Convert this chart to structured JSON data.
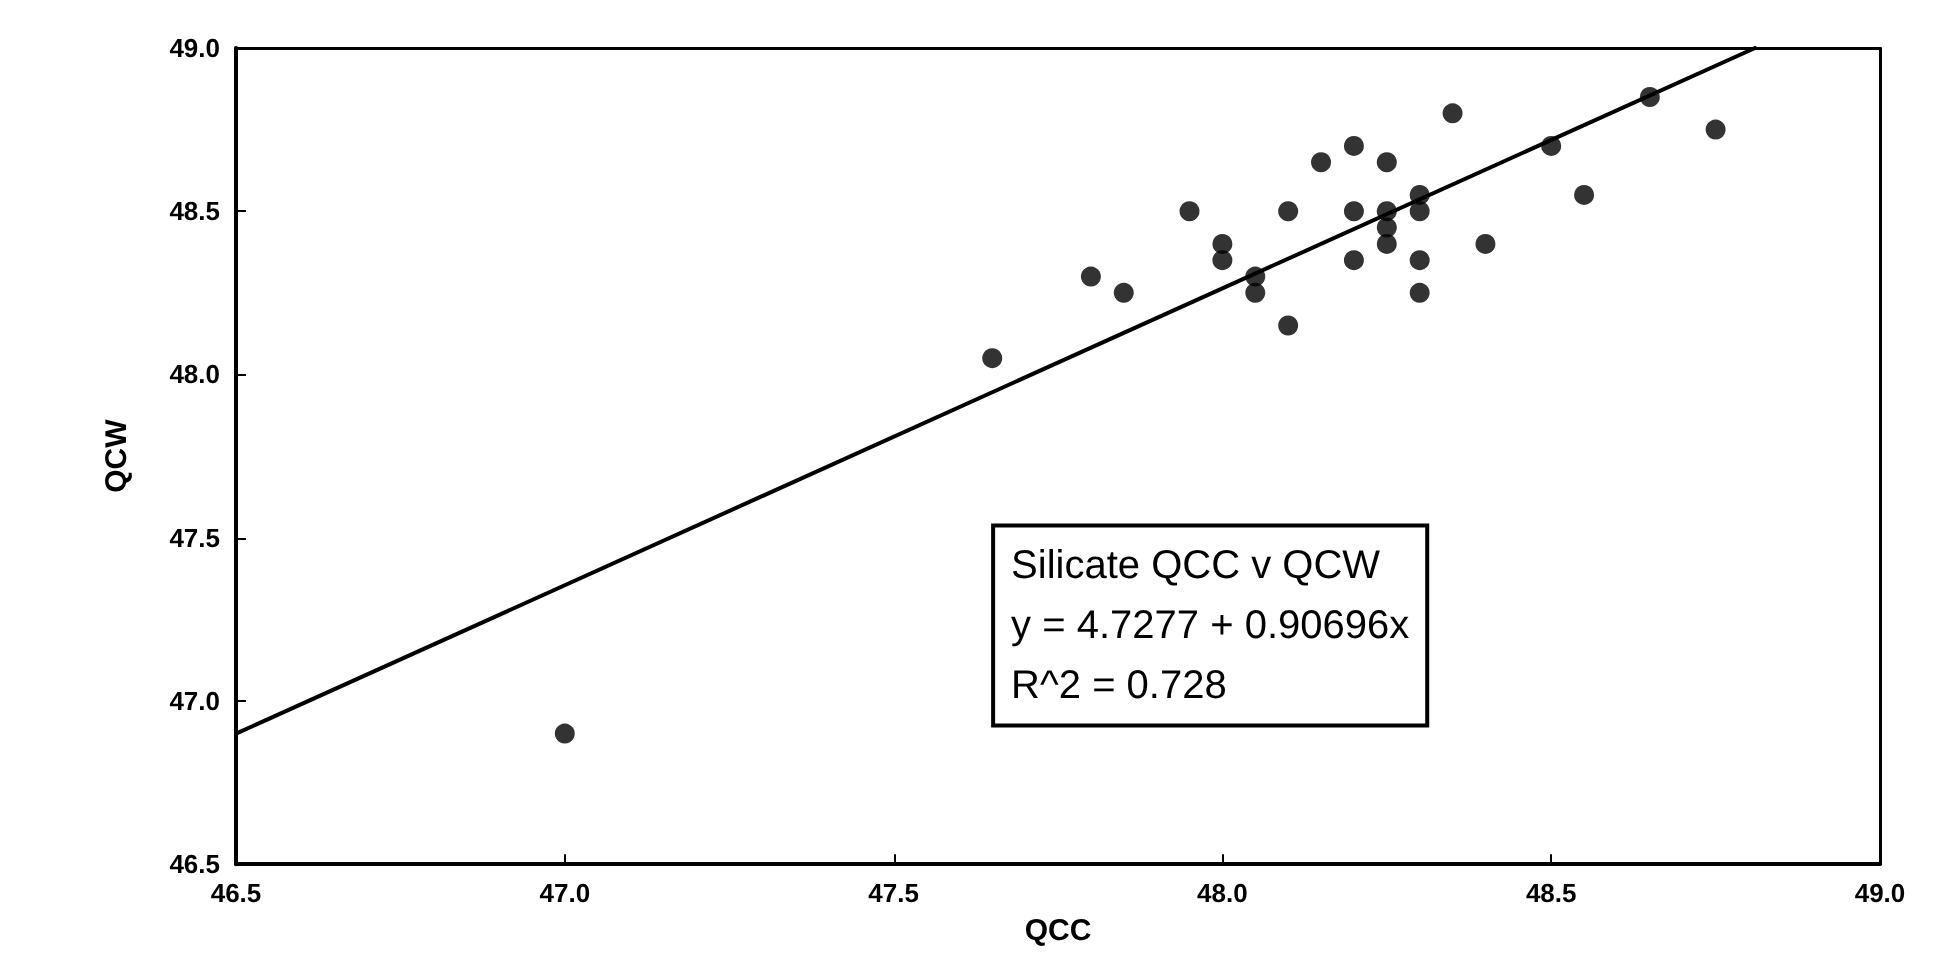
{
  "chart_data": {
    "type": "scatter",
    "xlabel": "QCC",
    "ylabel": "QCW",
    "xlim": [
      46.5,
      49.0
    ],
    "ylim": [
      46.5,
      49.0
    ],
    "xticks": [
      {
        "value": 46.5,
        "label": "46.5"
      },
      {
        "value": 47,
        "label": "47.0"
      },
      {
        "value": 47.5,
        "label": "47.5"
      },
      {
        "value": 48,
        "label": "48.0"
      },
      {
        "value": 48.5,
        "label": "48.5"
      },
      {
        "value": 49,
        "label": "49.0"
      }
    ],
    "yticks": [
      {
        "value": 46.5,
        "label": "46.5"
      },
      {
        "value": 47,
        "label": "47.0"
      },
      {
        "value": 47.5,
        "label": "47.5"
      },
      {
        "value": 48,
        "label": "48.0"
      },
      {
        "value": 48.5,
        "label": "48.5"
      },
      {
        "value": 49,
        "label": "49.0"
      }
    ],
    "grid": false,
    "marker": "circle",
    "annotations": [
      "Silicate QCC v QCW",
      "y = 4.7277 + 0.90696x",
      "R^2 = 0.728"
    ],
    "series": [
      {
        "color": "#000000",
        "x": [
          47.0,
          47.65,
          47.8,
          47.85,
          47.95,
          48.0,
          48.0,
          48.05,
          48.05,
          48.1,
          48.1,
          48.15,
          48.2,
          48.2,
          48.2,
          48.25,
          48.25,
          48.25,
          48.25,
          48.3,
          48.3,
          48.3,
          48.3,
          48.35,
          48.4,
          48.5,
          48.55,
          48.65,
          48.75
        ],
        "values": [
          46.9,
          48.05,
          48.3,
          48.25,
          48.5,
          48.4,
          48.35,
          48.3,
          48.25,
          48.5,
          48.15,
          48.65,
          48.7,
          48.5,
          48.35,
          48.65,
          48.5,
          48.45,
          48.4,
          48.55,
          48.5,
          48.35,
          48.25,
          48.8,
          48.4,
          48.7,
          48.55,
          48.85,
          48.75
        ]
      },
      {
        "type": "line",
        "color": "#000000",
        "marker": "none",
        "line_style": "solid",
        "x": [
          46.5,
          48.81
        ],
        "values": [
          46.9,
          49.0
        ]
      }
    ]
  }
}
